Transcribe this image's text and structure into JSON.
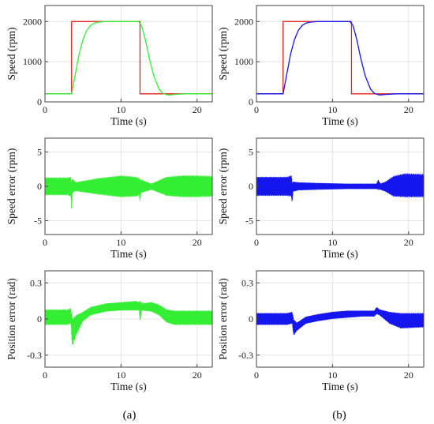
{
  "figure": {
    "captions": [
      "(a)",
      "(b)"
    ]
  },
  "colors": {
    "reference": "#e8231f",
    "method_a": "#33ee33",
    "method_b": "#1515ee",
    "grid": "#e3e3e3",
    "axis": "#444444"
  },
  "chart_data": [
    {
      "type": "line",
      "panel": "a-speed",
      "column": 0,
      "row": 0,
      "xlabel": "Time (s)",
      "ylabel": "Speed (rpm)",
      "xlim": [
        0,
        22
      ],
      "ylim": [
        0,
        2400
      ],
      "xticks": [
        0,
        10,
        20
      ],
      "yticks": [
        0,
        1000,
        2000
      ],
      "grid": true,
      "series": [
        {
          "color_key": "reference",
          "style": "line",
          "x": [
            0,
            3.5,
            3.5,
            12.5,
            12.5,
            22
          ],
          "y": [
            200,
            200,
            2000,
            2000,
            200,
            200
          ]
        },
        {
          "color_key": "method_a",
          "style": "line",
          "x": [
            0,
            3.5,
            4.0,
            4.5,
            5.0,
            5.5,
            6.0,
            6.5,
            7.0,
            8.0,
            12.3,
            12.7,
            13.2,
            13.7,
            14.3,
            15.0,
            15.5,
            16.2,
            17.0,
            18.5,
            22
          ],
          "y": [
            200,
            200,
            700,
            1200,
            1550,
            1780,
            1900,
            1960,
            1985,
            2000,
            2000,
            1900,
            1550,
            1100,
            650,
            320,
            210,
            170,
            185,
            200,
            200
          ]
        }
      ]
    },
    {
      "type": "line",
      "panel": "b-speed",
      "column": 1,
      "row": 0,
      "xlabel": "Time (s)",
      "ylabel": "Speed (rpm)",
      "xlim": [
        0,
        22
      ],
      "ylim": [
        0,
        2400
      ],
      "xticks": [
        0,
        10,
        20
      ],
      "yticks": [
        0,
        1000,
        2000
      ],
      "grid": true,
      "series": [
        {
          "color_key": "reference",
          "style": "line",
          "x": [
            0,
            3.5,
            3.5,
            12.5,
            12.5,
            22
          ],
          "y": [
            200,
            200,
            2000,
            2000,
            200,
            200
          ]
        },
        {
          "color_key": "method_b",
          "style": "line",
          "x": [
            0,
            3.5,
            4.0,
            4.5,
            5.0,
            5.5,
            6.0,
            6.5,
            7.0,
            8.0,
            12.3,
            12.7,
            13.2,
            13.7,
            14.3,
            15.0,
            15.5,
            16.2,
            17.0,
            18.5,
            22
          ],
          "y": [
            200,
            200,
            700,
            1200,
            1550,
            1780,
            1900,
            1960,
            1985,
            2000,
            2000,
            1900,
            1550,
            1100,
            650,
            320,
            210,
            170,
            185,
            200,
            200
          ]
        }
      ]
    },
    {
      "type": "area",
      "panel": "a-speed-error",
      "column": 0,
      "row": 1,
      "xlabel": "Time (s)",
      "ylabel": "Speed error (rpm)",
      "xlim": [
        0,
        22
      ],
      "ylim": [
        -7,
        7
      ],
      "xticks": [
        0,
        10,
        20
      ],
      "yticks": [
        -5,
        0,
        5
      ],
      "grid": true,
      "series": [
        {
          "color_key": "method_a",
          "style": "band",
          "x": [
            0,
            3.0,
            3.4,
            3.5,
            3.6,
            4.0,
            7.0,
            10.0,
            12.0,
            12.4,
            12.5,
            12.6,
            14.0,
            16.0,
            18.0,
            20.0,
            22
          ],
          "y_upper": [
            1.3,
            1.3,
            1.4,
            0.6,
            1.2,
            0.6,
            1.2,
            1.6,
            1.4,
            1.2,
            0.5,
            1.0,
            0.4,
            1.4,
            1.6,
            1.6,
            1.5
          ],
          "y_lower": [
            -1.3,
            -1.3,
            -1.5,
            -3.4,
            -1.0,
            -0.7,
            -1.2,
            -1.6,
            -1.5,
            -1.3,
            -2.4,
            -1.0,
            -0.5,
            -1.4,
            -1.6,
            -1.6,
            -1.5
          ]
        }
      ]
    },
    {
      "type": "area",
      "panel": "b-speed-error",
      "column": 1,
      "row": 1,
      "xlabel": "Time (s)",
      "ylabel": "Speed error (rpm)",
      "xlim": [
        0,
        22
      ],
      "ylim": [
        -7,
        7
      ],
      "xticks": [
        0,
        10,
        20
      ],
      "yticks": [
        -5,
        0,
        5
      ],
      "grid": true,
      "series": [
        {
          "color_key": "method_b",
          "style": "band",
          "x": [
            0,
            4.0,
            4.6,
            4.7,
            4.8,
            5.5,
            8.0,
            12.0,
            15.0,
            15.8,
            16.0,
            16.3,
            17.0,
            18.0,
            19.5,
            22
          ],
          "y_upper": [
            1.4,
            1.4,
            1.6,
            0.6,
            0.7,
            0.6,
            0.5,
            0.4,
            0.4,
            0.4,
            1.0,
            0.4,
            0.7,
            1.5,
            1.9,
            1.8
          ],
          "y_lower": [
            -1.4,
            -1.4,
            -1.5,
            -2.6,
            -0.8,
            -0.6,
            -0.5,
            -0.4,
            -0.4,
            -0.4,
            -0.5,
            -0.5,
            -0.8,
            -1.5,
            -1.6,
            -1.6
          ]
        }
      ]
    },
    {
      "type": "area",
      "panel": "a-position-error",
      "column": 0,
      "row": 2,
      "xlabel": "Time (s)",
      "ylabel": "Position error (rad)",
      "xlim": [
        0,
        22
      ],
      "ylim": [
        -0.4,
        0.4
      ],
      "xticks": [
        0,
        10,
        20
      ],
      "yticks": [
        -0.3,
        0,
        0.3
      ],
      "ytick_labels": [
        "-0.3",
        "0",
        "0.3"
      ],
      "grid": true,
      "series": [
        {
          "color_key": "method_a",
          "style": "band",
          "x": [
            0,
            3.0,
            3.4,
            3.6,
            4.0,
            5.0,
            6.0,
            8.0,
            10.0,
            12.0,
            12.4,
            12.5,
            12.7,
            14.0,
            15.0,
            16.0,
            17.0,
            22
          ],
          "y_upper": [
            0.08,
            0.08,
            0.09,
            0.0,
            0.03,
            0.06,
            0.1,
            0.13,
            0.14,
            0.15,
            0.14,
            0.16,
            0.13,
            0.14,
            0.12,
            0.08,
            0.07,
            0.07
          ],
          "y_lower": [
            -0.05,
            -0.05,
            -0.04,
            -0.23,
            -0.15,
            -0.02,
            0.03,
            0.06,
            0.07,
            0.07,
            0.07,
            -0.03,
            0.07,
            0.06,
            0.03,
            -0.03,
            -0.05,
            -0.05
          ]
        }
      ]
    },
    {
      "type": "area",
      "panel": "b-position-error",
      "column": 1,
      "row": 2,
      "xlabel": "Time (s)",
      "ylabel": "Position error (rad)",
      "xlim": [
        0,
        22
      ],
      "ylim": [
        -0.4,
        0.4
      ],
      "xticks": [
        0,
        10,
        20
      ],
      "yticks": [
        -0.3,
        0,
        0.3
      ],
      "ytick_labels": [
        "-0.3",
        "0",
        "0.3"
      ],
      "grid": true,
      "series": [
        {
          "color_key": "method_b",
          "style": "band",
          "x": [
            0,
            4.0,
            4.7,
            4.9,
            5.3,
            6.5,
            8.0,
            10.0,
            12.0,
            14.0,
            15.5,
            15.8,
            16.2,
            17.5,
            19.0,
            22
          ],
          "y_upper": [
            0.05,
            0.05,
            0.06,
            0.0,
            -0.03,
            0.02,
            0.04,
            0.06,
            0.07,
            0.07,
            0.07,
            0.1,
            0.08,
            0.06,
            0.05,
            0.05
          ],
          "y_lower": [
            -0.05,
            -0.05,
            -0.04,
            -0.14,
            -0.1,
            -0.04,
            -0.02,
            0.0,
            0.01,
            0.02,
            0.02,
            0.04,
            0.03,
            -0.04,
            -0.08,
            -0.07
          ]
        }
      ]
    }
  ]
}
